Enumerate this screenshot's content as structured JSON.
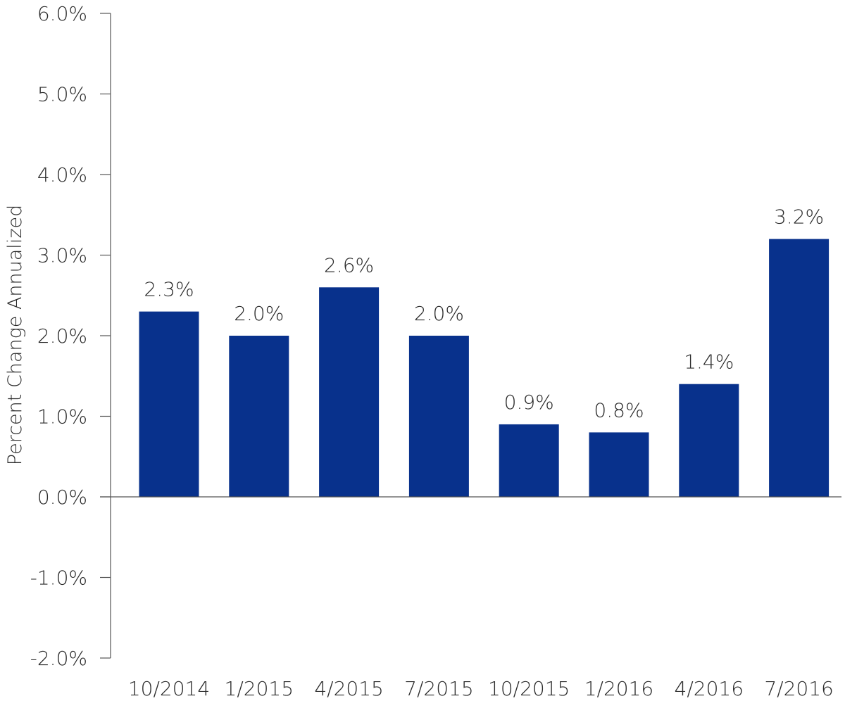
{
  "chart_data": {
    "type": "bar",
    "title": "",
    "xlabel": "",
    "ylabel": "Percent Change Annualized",
    "categories": [
      "10/2014",
      "1/2015",
      "4/2015",
      "7/2015",
      "10/2015",
      "1/2016",
      "4/2016",
      "7/2016"
    ],
    "values": [
      2.3,
      2.0,
      2.6,
      2.0,
      0.9,
      0.8,
      1.4,
      3.2
    ],
    "value_labels": [
      "2.3%",
      "2.0%",
      "2.6%",
      "2.0%",
      "0.9%",
      "0.8%",
      "1.4%",
      "3.2%"
    ],
    "ylim": [
      -2.0,
      6.0
    ],
    "yticks": [
      6.0,
      5.0,
      4.0,
      3.0,
      2.0,
      1.0,
      0.0,
      -1.0,
      -2.0
    ],
    "ytick_labels": [
      "6.0%",
      "5.0%",
      "4.0%",
      "3.0%",
      "2.0%",
      "1.0%",
      "0.0%",
      "-1.0%",
      "-2.0%"
    ],
    "grid": false,
    "legend": "none",
    "bar_color": "#08318c",
    "axis_color": "#555555",
    "text_color": "#2b2b2b"
  }
}
